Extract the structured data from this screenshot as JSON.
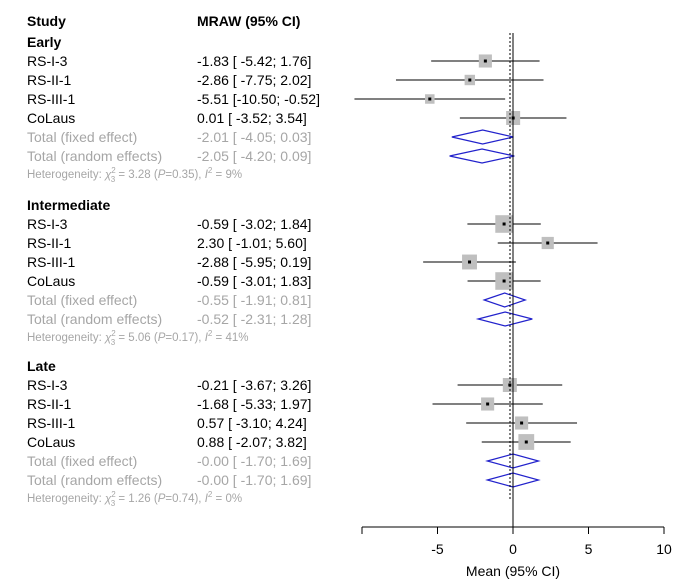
{
  "chart_data": {
    "type": "forest",
    "headers": {
      "study": "Study",
      "estimate": "MRAW (95% CI)"
    },
    "xlabel": "Mean (95% CI)",
    "xlim": [
      -10,
      10
    ],
    "xticks": [
      -5,
      0,
      5,
      10
    ],
    "reference_line": 0,
    "groups": [
      {
        "name": "Early",
        "studies": [
          {
            "label": "RS-I-3",
            "ci_text": "-1.83 [ -5.42;  1.76]",
            "mean": -1.83,
            "lower": -5.42,
            "upper": 1.76,
            "weight": 0.9
          },
          {
            "label": "RS-II-1",
            "ci_text": "-2.86 [ -7.75;  2.02]",
            "mean": -2.86,
            "lower": -7.75,
            "upper": 2.02,
            "weight": 0.6
          },
          {
            "label": "RS-III-1",
            "ci_text": "-5.51 [-10.50; -0.52]",
            "mean": -5.51,
            "lower": -10.5,
            "upper": -0.52,
            "weight": 0.5
          },
          {
            "label": "CoLaus",
            "ci_text": "0.01 [ -3.52;  3.54]",
            "mean": 0.01,
            "lower": -3.52,
            "upper": 3.54,
            "weight": 1.0
          }
        ],
        "fixed": {
          "label": "Total (fixed effect)",
          "ci_text": "-2.01 [ -4.05;  0.03]",
          "mean": -2.01,
          "lower": -4.05,
          "upper": 0.03
        },
        "random": {
          "label": "Total (random effects)",
          "ci_text": "-2.05 [ -4.20;  0.09]",
          "mean": -2.05,
          "lower": -4.2,
          "upper": 0.09
        },
        "heterogeneity": {
          "prefix": "Heterogeneity: ",
          "chi": "χ",
          "sup": "2",
          "sub": "3",
          "rest": " = 3.28 (",
          "p": "P",
          "pval": "=0.35), ",
          "i": "I",
          "isup": "2",
          "ival": " = 9%"
        }
      },
      {
        "name": "Intermediate",
        "studies": [
          {
            "label": "RS-I-3",
            "ci_text": "-0.59 [ -3.02;  1.84]",
            "mean": -0.59,
            "lower": -3.02,
            "upper": 1.84,
            "weight": 1.4
          },
          {
            "label": "RS-II-1",
            "ci_text": "2.30 [ -1.01;  5.60]",
            "mean": 2.3,
            "lower": -1.01,
            "upper": 5.6,
            "weight": 0.8
          },
          {
            "label": "RS-III-1",
            "ci_text": "-2.88 [ -5.95;  0.19]",
            "mean": -2.88,
            "lower": -5.95,
            "upper": 0.19,
            "weight": 1.1
          },
          {
            "label": "CoLaus",
            "ci_text": "-0.59 [ -3.01;  1.83]",
            "mean": -0.59,
            "lower": -3.01,
            "upper": 1.83,
            "weight": 1.4
          }
        ],
        "fixed": {
          "label": "Total (fixed effect)",
          "ci_text": "-0.55 [ -1.91;  0.81]",
          "mean": -0.55,
          "lower": -1.91,
          "upper": 0.81
        },
        "random": {
          "label": "Total (random effects)",
          "ci_text": "-0.52 [ -2.31;  1.28]",
          "mean": -0.52,
          "lower": -2.31,
          "upper": 1.28
        },
        "heterogeneity": {
          "prefix": "Heterogeneity: ",
          "chi": "χ",
          "sup": "2",
          "sub": "3",
          "rest": " = 5.06 (",
          "p": "P",
          "pval": "=0.17), ",
          "i": "I",
          "isup": "2",
          "ival": " = 41%"
        }
      },
      {
        "name": "Late",
        "studies": [
          {
            "label": "RS-I-3",
            "ci_text": "-0.21 [ -3.67;  3.26]",
            "mean": -0.21,
            "lower": -3.67,
            "upper": 3.26,
            "weight": 1.0
          },
          {
            "label": "RS-II-1",
            "ci_text": "-1.68 [ -5.33;  1.97]",
            "mean": -1.68,
            "lower": -5.33,
            "upper": 1.97,
            "weight": 0.9
          },
          {
            "label": "RS-III-1",
            "ci_text": "0.57 [ -3.10;  4.24]",
            "mean": 0.57,
            "lower": -3.1,
            "upper": 4.24,
            "weight": 0.9
          },
          {
            "label": "CoLaus",
            "ci_text": "0.88 [ -2.07;  3.82]",
            "mean": 0.88,
            "lower": -2.07,
            "upper": 3.82,
            "weight": 1.2
          }
        ],
        "fixed": {
          "label": "Total (fixed effect)",
          "ci_text": "-0.00 [ -1.70;  1.69]",
          "mean": 0.0,
          "lower": -1.7,
          "upper": 1.69
        },
        "random": {
          "label": "Total (random effects)",
          "ci_text": "-0.00 [ -1.70;  1.69]",
          "mean": 0.0,
          "lower": -1.7,
          "upper": 1.69
        },
        "heterogeneity": {
          "prefix": "Heterogeneity: ",
          "chi": "χ",
          "sup": "2",
          "sub": "3",
          "rest": " = 1.26 (",
          "p": "P",
          "pval": "=0.74), ",
          "i": "I",
          "isup": "2",
          "ival": " = 0%"
        }
      }
    ],
    "colors": {
      "text": "#000000",
      "summary_text": "#a6a6a6",
      "diamond": "#2222cc",
      "box": "#bfbfbf",
      "line": "#000000"
    }
  }
}
